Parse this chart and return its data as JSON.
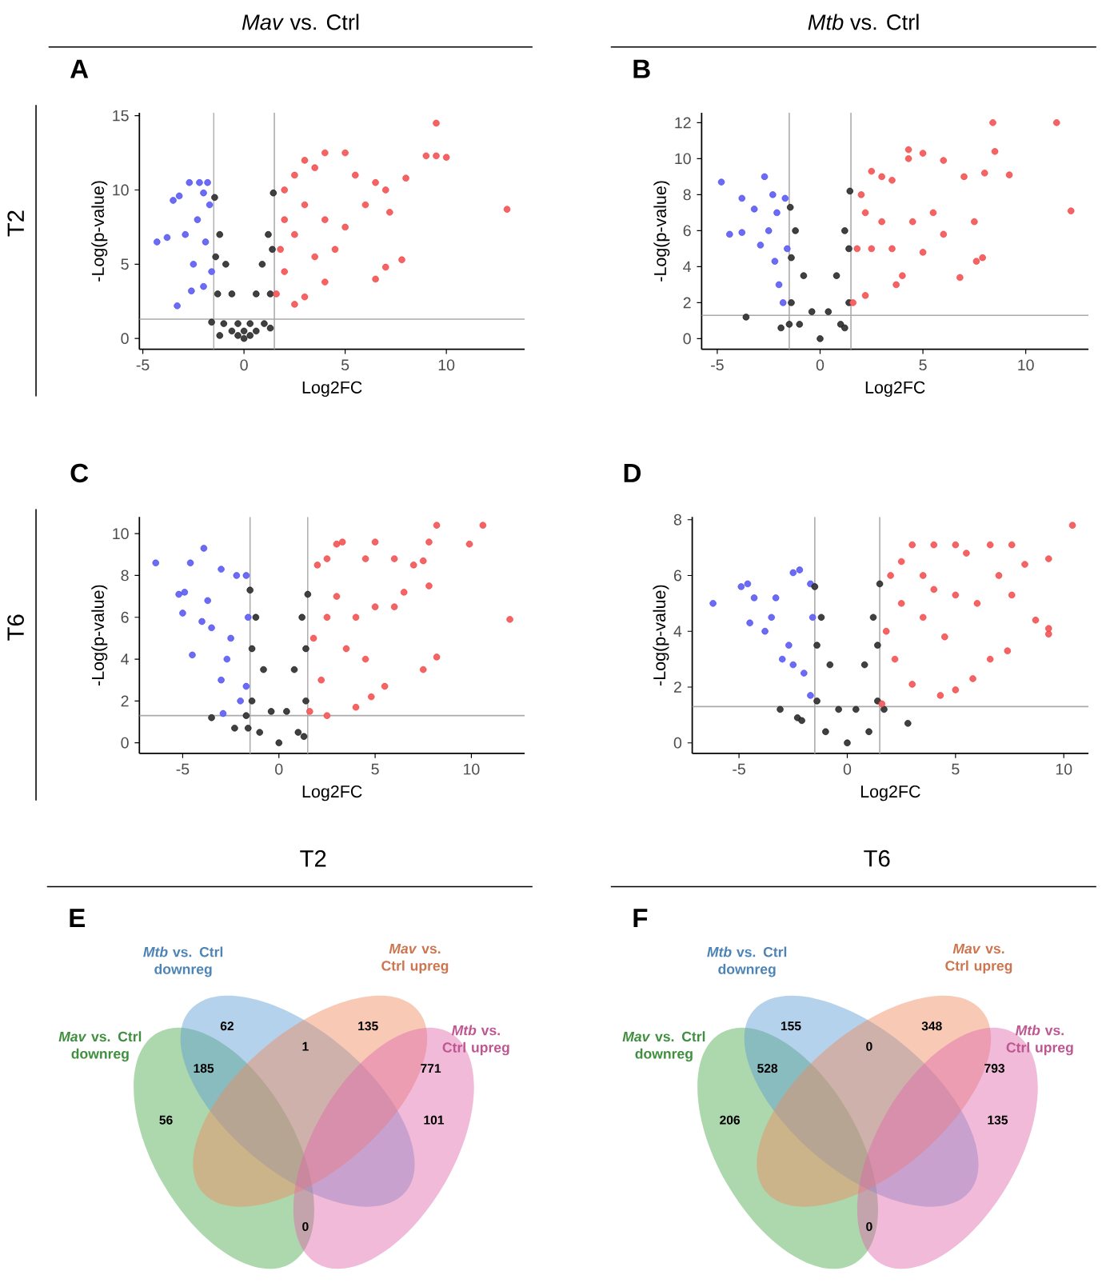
{
  "chart_data": [
    {
      "type": "scatter",
      "title": "*Mav* vs. Ctrl",
      "xlabel": "Log2FC",
      "ylabel": "-Log(p-value)",
      "annotations": [
        "A",
        "T2"
      ],
      "xlim": [
        -5.17,
        13.87
      ],
      "ylim": [
        -0.73,
        15.2
      ],
      "xticks": [
        -5,
        0,
        5,
        10
      ],
      "yticks": [
        0,
        5,
        10,
        15
      ],
      "ref_lines": [
        {
          "axis": "x",
          "value": -1.5,
          "color": "#aaaaaa"
        },
        {
          "axis": "x",
          "value": 1.5,
          "color": "#aaaaaa"
        },
        {
          "axis": "y",
          "value": 1.3,
          "color": "#aaaaaa"
        }
      ],
      "series": [
        {
          "color": "#3a3af0",
          "x": [
            -4.3,
            -3.3,
            -3.2,
            -2.7,
            -2.2,
            -1.8,
            -3.5,
            -2.9,
            -2.5,
            -2.0,
            -2.3,
            -1.9,
            -1.7,
            -3.8,
            -2.6,
            -1.6,
            -2.0
          ],
          "values": [
            6.5,
            2.2,
            9.6,
            10.5,
            10.5,
            10.5,
            9.3,
            7.0,
            5.0,
            3.5,
            8.0,
            6.5,
            9.0,
            6.8,
            3.2,
            4.5,
            9.8
          ]
        },
        {
          "color": "#000000",
          "x": [
            0,
            -0.3,
            0.3,
            -0.6,
            0.6,
            -0.9,
            0.9,
            -1.2,
            1.2,
            -1.45,
            1.45,
            -1.0,
            1.0,
            -1.3,
            1.3,
            -0.6,
            0.6,
            -1.4,
            1.4,
            -1.6,
            -1.2,
            1.3,
            0,
            -0.3,
            0.3
          ],
          "values": [
            0,
            1,
            1,
            3,
            3,
            5,
            5,
            7,
            7,
            9.5,
            9.8,
            1,
            1,
            3,
            3,
            0.5,
            0.5,
            5.5,
            6,
            1.1,
            0.2,
            0.7,
            0.5,
            0.2,
            0.2
          ]
        },
        {
          "color": "#f03030",
          "x": [
            1.6,
            1.8,
            2,
            2.5,
            3,
            3.5,
            4,
            5,
            5.5,
            6.5,
            7,
            8,
            9,
            9.5,
            9.5,
            10,
            13,
            7.8,
            7,
            6.5,
            4,
            3,
            2.5,
            2,
            2.5,
            3,
            4,
            5,
            6,
            4.5,
            3.5,
            7.2,
            2
          ],
          "values": [
            3,
            6,
            10,
            11,
            12,
            11.5,
            12.5,
            12.5,
            11,
            10.5,
            10,
            10.8,
            12.3,
            12.3,
            14.5,
            12.2,
            8.7,
            5.3,
            4.8,
            4,
            3.8,
            2.8,
            2.3,
            4.5,
            7,
            9,
            8,
            7.5,
            9,
            6,
            5.5,
            8.5,
            8
          ]
        }
      ]
    },
    {
      "type": "scatter",
      "title": "*Mtb* vs. Ctrl",
      "xlabel": "Log2FC",
      "ylabel": "-Log(p-value)",
      "annotations": [
        "B"
      ],
      "xlim": [
        -5.76,
        13.05
      ],
      "ylim": [
        -0.59,
        12.55
      ],
      "xticks": [
        -5,
        0,
        5,
        10
      ],
      "yticks": [
        0,
        2,
        4,
        6,
        8,
        10,
        12
      ],
      "ref_lines": [
        {
          "axis": "x",
          "value": -1.5,
          "color": "#aaaaaa"
        },
        {
          "axis": "x",
          "value": 1.5,
          "color": "#aaaaaa"
        },
        {
          "axis": "y",
          "value": 1.3,
          "color": "#aaaaaa"
        }
      ],
      "series": [
        {
          "color": "#3a3af0",
          "x": [
            -4.8,
            -4.4,
            -3.8,
            -3.8,
            -3.2,
            -2.7,
            -2.3,
            -2.5,
            -2.0,
            -1.8,
            -2.1,
            -1.6,
            -1.7,
            -2.9,
            -2.2
          ],
          "values": [
            8.7,
            5.8,
            5.9,
            7.8,
            7.2,
            9.0,
            8.0,
            6.0,
            3.0,
            2.0,
            7.0,
            5.0,
            7.8,
            5.2,
            4.3
          ]
        },
        {
          "color": "#000000",
          "x": [
            0,
            -0.4,
            0.4,
            -0.8,
            0.8,
            -1.2,
            1.2,
            -1.45,
            1.45,
            -1,
            1,
            -1.4,
            1.4,
            -1.4,
            1.4,
            -1.5,
            1.2,
            -1.9,
            -3.6
          ],
          "values": [
            0,
            1.5,
            1.5,
            3.5,
            3.5,
            6,
            6,
            7.3,
            8.2,
            0.8,
            0.8,
            2,
            2,
            4.5,
            5,
            0.8,
            0.6,
            0.6,
            1.2
          ]
        },
        {
          "color": "#f03030",
          "x": [
            1.6,
            1.8,
            2,
            2.5,
            3,
            3.5,
            4.3,
            4.3,
            5,
            6,
            7,
            8,
            8.5,
            9.2,
            8.4,
            11.5,
            12.2,
            7.9,
            7.6,
            6.8,
            5,
            4,
            3.7,
            2.2,
            2.5,
            3,
            4.5,
            5.5,
            6,
            3.5,
            7.5,
            2.2
          ],
          "values": [
            2.0,
            5,
            8,
            9.3,
            9,
            8.8,
            10,
            10.5,
            10.3,
            9.9,
            9,
            9.2,
            10.4,
            9.1,
            12,
            12,
            7.1,
            4.5,
            4.3,
            3.4,
            4.8,
            3.5,
            3,
            2.4,
            5,
            6.5,
            6.5,
            7,
            5.8,
            5,
            6.5,
            7
          ]
        }
      ]
    },
    {
      "type": "scatter",
      "xlabel": "Log2FC",
      "ylabel": "-Log(p-value)",
      "annotations": [
        "C",
        "T6"
      ],
      "xlim": [
        -7.25,
        12.77
      ],
      "ylim": [
        -0.51,
        10.8
      ],
      "xticks": [
        -5,
        0,
        5,
        10
      ],
      "yticks": [
        0,
        2,
        4,
        6,
        8,
        10
      ],
      "ref_lines": [
        {
          "axis": "x",
          "value": -1.5,
          "color": "#aaaaaa"
        },
        {
          "axis": "x",
          "value": 1.5,
          "color": "#aaaaaa"
        },
        {
          "axis": "y",
          "value": 1.3,
          "color": "#aaaaaa"
        }
      ],
      "series": [
        {
          "color": "#3a3af0",
          "x": [
            -6.4,
            -5.2,
            -4.9,
            -5,
            -4.5,
            -4.6,
            -3.9,
            -3.7,
            -3,
            -3.5,
            -3,
            -2.9,
            -2.5,
            -2,
            -1.7,
            -2.2,
            -1.7,
            -2.7,
            -1.6,
            -4.0
          ],
          "values": [
            8.6,
            7.1,
            7.2,
            6.2,
            4.2,
            8.6,
            9.3,
            6.8,
            8.3,
            5.5,
            3,
            1.4,
            5,
            2,
            2.7,
            8,
            8,
            4.0,
            6,
            5.8
          ]
        },
        {
          "color": "#000000",
          "x": [
            0,
            -0.4,
            0.4,
            -0.8,
            0.8,
            -1.2,
            1.2,
            -1.5,
            1.5,
            -1,
            1,
            -1.4,
            1.4,
            -1.4,
            1.4,
            -1.7,
            -2.3,
            -3.5,
            -1.6,
            1.3
          ],
          "values": [
            0,
            1.5,
            1.5,
            3.5,
            3.5,
            6,
            6,
            7.3,
            7.1,
            0.5,
            0.5,
            2,
            2,
            4.5,
            4.5,
            1.3,
            0.7,
            1.2,
            0.7,
            0.3
          ]
        },
        {
          "color": "#f03030",
          "x": [
            1.6,
            1.8,
            2,
            2.5,
            3,
            3.3,
            4.5,
            5,
            6,
            7,
            7.5,
            7.8,
            8.2,
            9.9,
            10.6,
            12,
            8.2,
            7.5,
            5.5,
            4.8,
            4,
            2.5,
            2.2,
            2.5,
            3,
            4,
            5,
            6,
            4.5,
            3.5,
            6.5,
            7.8
          ],
          "values": [
            1.5,
            5,
            8.5,
            8.8,
            9.5,
            9.6,
            8.8,
            9.6,
            8.8,
            8.5,
            8.7,
            9.6,
            10.4,
            9.5,
            10.4,
            5.9,
            4.1,
            3.5,
            2.7,
            2.2,
            1.7,
            1.3,
            3,
            6,
            7,
            6,
            6.5,
            6.5,
            4,
            4.5,
            7.2,
            7.5
          ]
        }
      ]
    },
    {
      "type": "scatter",
      "xlabel": "Log2FC",
      "ylabel": "-Log(p-value)",
      "annotations": [
        "D"
      ],
      "xlim": [
        -7.16,
        11.14
      ],
      "ylim": [
        -0.38,
        8.1
      ],
      "xticks": [
        -5,
        0,
        5,
        10
      ],
      "yticks": [
        0,
        2,
        4,
        6,
        8
      ],
      "ref_lines": [
        {
          "axis": "x",
          "value": -1.5,
          "color": "#aaaaaa"
        },
        {
          "axis": "x",
          "value": 1.5,
          "color": "#aaaaaa"
        },
        {
          "axis": "y",
          "value": 1.3,
          "color": "#aaaaaa"
        }
      ],
      "series": [
        {
          "color": "#3a3af0",
          "x": [
            -6.2,
            -4.9,
            -4.6,
            -4.3,
            -4.5,
            -3.8,
            -3.3,
            -2.5,
            -2.2,
            -2.7,
            -2,
            -1.7,
            -3.5,
            -1.7,
            -2.5,
            -1.6,
            -3
          ],
          "values": [
            5.0,
            5.6,
            5.7,
            5.2,
            4.3,
            4.0,
            5.2,
            6.1,
            6.2,
            3.5,
            2.5,
            1.7,
            4.5,
            5.7,
            2.8,
            4.5,
            3
          ]
        },
        {
          "color": "#000000",
          "x": [
            0,
            -0.4,
            0.4,
            -0.8,
            0.8,
            -1.2,
            1.2,
            -1.5,
            1.5,
            -1,
            1,
            -1.4,
            1.4,
            -1.4,
            1.4,
            -3.1,
            -2.3,
            -2.1,
            2.8,
            1.7
          ],
          "values": [
            0,
            1.2,
            1.2,
            2.8,
            2.8,
            4.5,
            4.5,
            5.6,
            5.7,
            0.4,
            0.4,
            1.5,
            1.5,
            3.5,
            3.5,
            1.2,
            0.9,
            0.8,
            0.7,
            1.2
          ]
        },
        {
          "color": "#f03030",
          "x": [
            1.6,
            1.8,
            2,
            2.5,
            3,
            4,
            5,
            5.5,
            6.6,
            7.6,
            8.2,
            9.3,
            10.4,
            8.7,
            9.3,
            9.3,
            7.6,
            7.4,
            6.6,
            5.8,
            5,
            4.3,
            3,
            2.2,
            2.5,
            3.5,
            4,
            5,
            6,
            4.5,
            7,
            3.5
          ],
          "values": [
            1.4,
            4,
            6,
            6.5,
            7.1,
            7.1,
            7.1,
            6.8,
            7.1,
            7.1,
            6.4,
            6.6,
            7.8,
            4.4,
            3.9,
            4.1,
            5.3,
            3.3,
            3.0,
            2.3,
            1.9,
            1.7,
            2.1,
            3,
            5,
            4.5,
            5.5,
            5.3,
            5,
            3.8,
            6.0,
            6
          ]
        }
      ]
    },
    {
      "type": "other",
      "title": "T2",
      "categories": [
        "*Mav* vs. Ctrl downreg",
        "*Mtb* vs. Ctrl downreg",
        "*Mav* vs. Ctrl upreg",
        "*Mtb* vs. Ctrl upreg"
      ],
      "colors": [
        "#4aa84a",
        "#5b9bd5",
        "#f08a5d",
        "#e066aa"
      ],
      "annotations": [
        "E",
        "62",
        "135",
        "1",
        "185",
        "771",
        "56",
        "101",
        "0"
      ]
    },
    {
      "type": "other",
      "title": "T6",
      "categories": [
        "*Mav* vs. Ctrl downreg",
        "*Mtb* vs. Ctrl downreg",
        "*Mav* vs. Ctrl upreg",
        "*Mtb* vs. Ctrl upreg"
      ],
      "colors": [
        "#4aa84a",
        "#5b9bd5",
        "#f08a5d",
        "#e066aa"
      ],
      "annotations": [
        "F",
        "155",
        "348",
        "0",
        "528",
        "793",
        "206",
        "135",
        "0"
      ]
    }
  ]
}
